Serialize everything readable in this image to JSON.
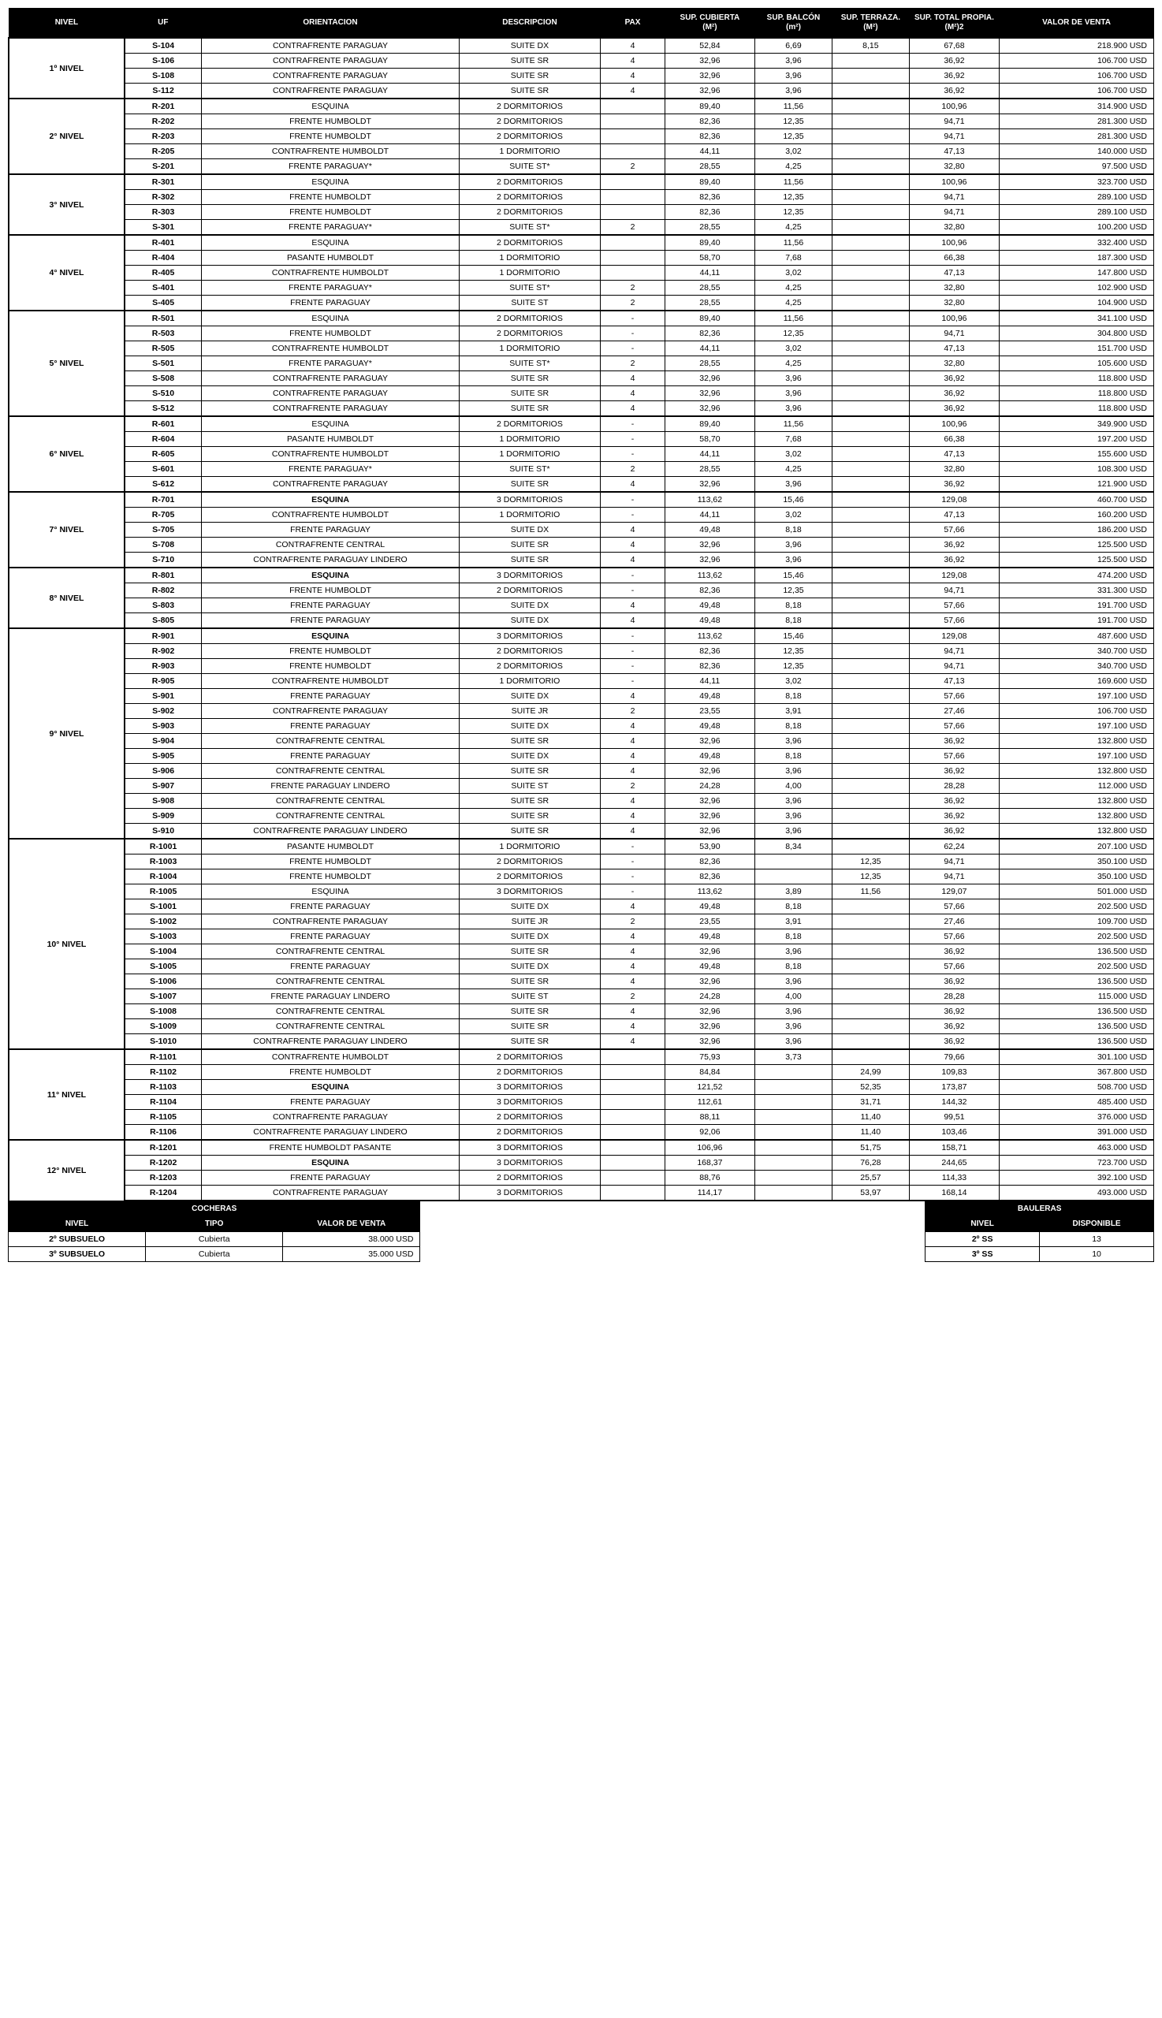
{
  "headers": [
    "NIVEL",
    "UF",
    "ORIENTACION",
    "DESCRIPCION",
    "PAX",
    "SUP. CUBIERTA (M²)",
    "SUP. BALCÓN (m²)",
    "SUP. TERRAZA. (M²)",
    "SUP. TOTAL PROPIA. (M²)2",
    "VALOR DE VENTA"
  ],
  "groups": [
    {
      "nivel": "1º NIVEL",
      "rows": [
        [
          "S-104",
          "CONTRAFRENTE PARAGUAY",
          "SUITE DX",
          "4",
          "52,84",
          "6,69",
          "8,15",
          "67,68",
          "218.900 USD"
        ],
        [
          "S-106",
          "CONTRAFRENTE PARAGUAY",
          "SUITE SR",
          "4",
          "32,96",
          "3,96",
          "",
          "36,92",
          "106.700 USD"
        ],
        [
          "S-108",
          "CONTRAFRENTE PARAGUAY",
          "SUITE SR",
          "4",
          "32,96",
          "3,96",
          "",
          "36,92",
          "106.700 USD"
        ],
        [
          "S-112",
          "CONTRAFRENTE PARAGUAY",
          "SUITE SR",
          "4",
          "32,96",
          "3,96",
          "",
          "36,92",
          "106.700 USD"
        ]
      ]
    },
    {
      "nivel": "2° NIVEL",
      "rows": [
        [
          "R-201",
          "ESQUINA",
          "2 DORMITORIOS",
          "",
          "89,40",
          "11,56",
          "",
          "100,96",
          "314.900 USD"
        ],
        [
          "R-202",
          "FRENTE HUMBOLDT",
          "2 DORMITORIOS",
          "",
          "82,36",
          "12,35",
          "",
          "94,71",
          "281.300 USD"
        ],
        [
          "R-203",
          "FRENTE HUMBOLDT",
          "2 DORMITORIOS",
          "",
          "82,36",
          "12,35",
          "",
          "94,71",
          "281.300 USD"
        ],
        [
          "R-205",
          "CONTRAFRENTE HUMBOLDT",
          "1 DORMITORIO",
          "",
          "44,11",
          "3,02",
          "",
          "47,13",
          "140.000 USD"
        ],
        [
          "S-201",
          "FRENTE PARAGUAY*",
          "SUITE ST*",
          "2",
          "28,55",
          "4,25",
          "",
          "32,80",
          "97.500 USD"
        ]
      ]
    },
    {
      "nivel": "3° NIVEL",
      "rows": [
        [
          "R-301",
          "ESQUINA",
          "2 DORMITORIOS",
          "",
          "89,40",
          "11,56",
          "",
          "100,96",
          "323.700 USD"
        ],
        [
          "R-302",
          "FRENTE HUMBOLDT",
          "2 DORMITORIOS",
          "",
          "82,36",
          "12,35",
          "",
          "94,71",
          "289.100 USD"
        ],
        [
          "R-303",
          "FRENTE HUMBOLDT",
          "2 DORMITORIOS",
          "",
          "82,36",
          "12,35",
          "",
          "94,71",
          "289.100 USD"
        ],
        [
          "S-301",
          "FRENTE PARAGUAY*",
          "SUITE ST*",
          "2",
          "28,55",
          "4,25",
          "",
          "32,80",
          "100.200 USD"
        ]
      ]
    },
    {
      "nivel": "4° NIVEL",
      "rows": [
        [
          "R-401",
          "ESQUINA",
          "2 DORMITORIOS",
          "",
          "89,40",
          "11,56",
          "",
          "100,96",
          "332.400 USD"
        ],
        [
          "R-404",
          "PASANTE HUMBOLDT",
          "1 DORMITORIO",
          "",
          "58,70",
          "7,68",
          "",
          "66,38",
          "187.300 USD"
        ],
        [
          "R-405",
          "CONTRAFRENTE HUMBOLDT",
          "1 DORMITORIO",
          "",
          "44,11",
          "3,02",
          "",
          "47,13",
          "147.800 USD"
        ],
        [
          "S-401",
          "FRENTE PARAGUAY*",
          "SUITE ST*",
          "2",
          "28,55",
          "4,25",
          "",
          "32,80",
          "102.900 USD"
        ],
        [
          "S-405",
          "FRENTE PARAGUAY",
          "SUITE ST",
          "2",
          "28,55",
          "4,25",
          "",
          "32,80",
          "104.900 USD"
        ]
      ]
    },
    {
      "nivel": "5° NIVEL",
      "rows": [
        [
          "R-501",
          "ESQUINA",
          "2 DORMITORIOS",
          "-",
          "89,40",
          "11,56",
          "",
          "100,96",
          "341.100 USD"
        ],
        [
          "R-503",
          "FRENTE HUMBOLDT",
          "2 DORMITORIOS",
          "-",
          "82,36",
          "12,35",
          "",
          "94,71",
          "304.800 USD"
        ],
        [
          "R-505",
          "CONTRAFRENTE HUMBOLDT",
          "1 DORMITORIO",
          "-",
          "44,11",
          "3,02",
          "",
          "47,13",
          "151.700 USD"
        ],
        [
          "S-501",
          "FRENTE PARAGUAY*",
          "SUITE ST*",
          "2",
          "28,55",
          "4,25",
          "",
          "32,80",
          "105.600 USD"
        ],
        [
          "S-508",
          "CONTRAFRENTE PARAGUAY",
          "SUITE SR",
          "4",
          "32,96",
          "3,96",
          "",
          "36,92",
          "118.800 USD"
        ],
        [
          "S-510",
          "CONTRAFRENTE PARAGUAY",
          "SUITE SR",
          "4",
          "32,96",
          "3,96",
          "",
          "36,92",
          "118.800 USD"
        ],
        [
          "S-512",
          "CONTRAFRENTE PARAGUAY",
          "SUITE SR",
          "4",
          "32,96",
          "3,96",
          "",
          "36,92",
          "118.800 USD"
        ]
      ]
    },
    {
      "nivel": "6° NIVEL",
      "rows": [
        [
          "R-601",
          "ESQUINA",
          "2 DORMITORIOS",
          "-",
          "89,40",
          "11,56",
          "",
          "100,96",
          "349.900 USD"
        ],
        [
          "R-604",
          "PASANTE HUMBOLDT",
          "1 DORMITORIO",
          "-",
          "58,70",
          "7,68",
          "",
          "66,38",
          "197.200 USD"
        ],
        [
          "R-605",
          "CONTRAFRENTE HUMBOLDT",
          "1 DORMITORIO",
          "-",
          "44,11",
          "3,02",
          "",
          "47,13",
          "155.600 USD"
        ],
        [
          "S-601",
          "FRENTE PARAGUAY*",
          "SUITE ST*",
          "2",
          "28,55",
          "4,25",
          "",
          "32,80",
          "108.300 USD"
        ],
        [
          "S-612",
          "CONTRAFRENTE PARAGUAY",
          "SUITE SR",
          "4",
          "32,96",
          "3,96",
          "",
          "36,92",
          "121.900 USD"
        ]
      ]
    },
    {
      "nivel": "7° NIVEL",
      "rows": [
        [
          "R-701",
          "ESQUINA",
          "3 DORMITORIOS",
          "-",
          "113,62",
          "15,46",
          "",
          "129,08",
          "460.700 USD",
          true
        ],
        [
          "R-705",
          "CONTRAFRENTE HUMBOLDT",
          "1 DORMITORIO",
          "-",
          "44,11",
          "3,02",
          "",
          "47,13",
          "160.200 USD"
        ],
        [
          "S-705",
          "FRENTE PARAGUAY",
          "SUITE DX",
          "4",
          "49,48",
          "8,18",
          "",
          "57,66",
          "186.200 USD"
        ],
        [
          "S-708",
          "CONTRAFRENTE CENTRAL",
          "SUITE SR",
          "4",
          "32,96",
          "3,96",
          "",
          "36,92",
          "125.500 USD"
        ],
        [
          "S-710",
          "CONTRAFRENTE PARAGUAY LINDERO",
          "SUITE SR",
          "4",
          "32,96",
          "3,96",
          "",
          "36,92",
          "125.500 USD"
        ]
      ]
    },
    {
      "nivel": "8° NIVEL",
      "rows": [
        [
          "R-801",
          "ESQUINA",
          "3 DORMITORIOS",
          "-",
          "113,62",
          "15,46",
          "",
          "129,08",
          "474.200 USD",
          true
        ],
        [
          "R-802",
          "FRENTE HUMBOLDT",
          "2 DORMITORIOS",
          "-",
          "82,36",
          "12,35",
          "",
          "94,71",
          "331.300 USD"
        ],
        [
          "S-803",
          "FRENTE PARAGUAY",
          "SUITE DX",
          "4",
          "49,48",
          "8,18",
          "",
          "57,66",
          "191.700 USD"
        ],
        [
          "S-805",
          "FRENTE PARAGUAY",
          "SUITE DX",
          "4",
          "49,48",
          "8,18",
          "",
          "57,66",
          "191.700 USD"
        ]
      ]
    },
    {
      "nivel": "9° NIVEL",
      "rows": [
        [
          "R-901",
          "ESQUINA",
          "3 DORMITORIOS",
          "-",
          "113,62",
          "15,46",
          "",
          "129,08",
          "487.600 USD",
          true
        ],
        [
          "R-902",
          "FRENTE HUMBOLDT",
          "2 DORMITORIOS",
          "-",
          "82,36",
          "12,35",
          "",
          "94,71",
          "340.700 USD"
        ],
        [
          "R-903",
          "FRENTE HUMBOLDT",
          "2 DORMITORIOS",
          "-",
          "82,36",
          "12,35",
          "",
          "94,71",
          "340.700 USD"
        ],
        [
          "R-905",
          "CONTRAFRENTE HUMBOLDT",
          "1 DORMITORIO",
          "-",
          "44,11",
          "3,02",
          "",
          "47,13",
          "169.600 USD"
        ],
        [
          "S-901",
          "FRENTE PARAGUAY",
          "SUITE DX",
          "4",
          "49,48",
          "8,18",
          "",
          "57,66",
          "197.100 USD"
        ],
        [
          "S-902",
          "CONTRAFRENTE PARAGUAY",
          "SUITE JR",
          "2",
          "23,55",
          "3,91",
          "",
          "27,46",
          "106.700 USD"
        ],
        [
          "S-903",
          "FRENTE PARAGUAY",
          "SUITE DX",
          "4",
          "49,48",
          "8,18",
          "",
          "57,66",
          "197.100 USD"
        ],
        [
          "S-904",
          "CONTRAFRENTE CENTRAL",
          "SUITE SR",
          "4",
          "32,96",
          "3,96",
          "",
          "36,92",
          "132.800 USD"
        ],
        [
          "S-905",
          "FRENTE PARAGUAY",
          "SUITE DX",
          "4",
          "49,48",
          "8,18",
          "",
          "57,66",
          "197.100 USD"
        ],
        [
          "S-906",
          "CONTRAFRENTE CENTRAL",
          "SUITE SR",
          "4",
          "32,96",
          "3,96",
          "",
          "36,92",
          "132.800 USD"
        ],
        [
          "S-907",
          "FRENTE PARAGUAY LINDERO",
          "SUITE ST",
          "2",
          "24,28",
          "4,00",
          "",
          "28,28",
          "112.000 USD"
        ],
        [
          "S-908",
          "CONTRAFRENTE CENTRAL",
          "SUITE SR",
          "4",
          "32,96",
          "3,96",
          "",
          "36,92",
          "132.800 USD"
        ],
        [
          "S-909",
          "CONTRAFRENTE CENTRAL",
          "SUITE SR",
          "4",
          "32,96",
          "3,96",
          "",
          "36,92",
          "132.800 USD"
        ],
        [
          "S-910",
          "CONTRAFRENTE PARAGUAY LINDERO",
          "SUITE SR",
          "4",
          "32,96",
          "3,96",
          "",
          "36,92",
          "132.800 USD"
        ]
      ]
    },
    {
      "nivel": "10° NIVEL",
      "rows": [
        [
          "R-1001",
          "PASANTE HUMBOLDT",
          "1 DORMITORIO",
          "-",
          "53,90",
          "8,34",
          "",
          "62,24",
          "207.100 USD"
        ],
        [
          "R-1003",
          "FRENTE HUMBOLDT",
          "2 DORMITORIOS",
          "-",
          "82,36",
          "",
          "12,35",
          "94,71",
          "350.100 USD"
        ],
        [
          "R-1004",
          "FRENTE HUMBOLDT",
          "2 DORMITORIOS",
          "-",
          "82,36",
          "",
          "12,35",
          "94,71",
          "350.100 USD"
        ],
        [
          "R-1005",
          "ESQUINA",
          "3 DORMITORIOS",
          "-",
          "113,62",
          "3,89",
          "11,56",
          "129,07",
          "501.000 USD"
        ],
        [
          "S-1001",
          "FRENTE PARAGUAY",
          "SUITE DX",
          "4",
          "49,48",
          "8,18",
          "",
          "57,66",
          "202.500 USD"
        ],
        [
          "S-1002",
          "CONTRAFRENTE PARAGUAY",
          "SUITE JR",
          "2",
          "23,55",
          "3,91",
          "",
          "27,46",
          "109.700 USD"
        ],
        [
          "S-1003",
          "FRENTE PARAGUAY",
          "SUITE DX",
          "4",
          "49,48",
          "8,18",
          "",
          "57,66",
          "202.500 USD"
        ],
        [
          "S-1004",
          "CONTRAFRENTE CENTRAL",
          "SUITE SR",
          "4",
          "32,96",
          "3,96",
          "",
          "36,92",
          "136.500 USD"
        ],
        [
          "S-1005",
          "FRENTE PARAGUAY",
          "SUITE DX",
          "4",
          "49,48",
          "8,18",
          "",
          "57,66",
          "202.500 USD"
        ],
        [
          "S-1006",
          "CONTRAFRENTE CENTRAL",
          "SUITE SR",
          "4",
          "32,96",
          "3,96",
          "",
          "36,92",
          "136.500 USD"
        ],
        [
          "S-1007",
          "FRENTE PARAGUAY LINDERO",
          "SUITE ST",
          "2",
          "24,28",
          "4,00",
          "",
          "28,28",
          "115.000 USD"
        ],
        [
          "S-1008",
          "CONTRAFRENTE CENTRAL",
          "SUITE SR",
          "4",
          "32,96",
          "3,96",
          "",
          "36,92",
          "136.500 USD"
        ],
        [
          "S-1009",
          "CONTRAFRENTE CENTRAL",
          "SUITE SR",
          "4",
          "32,96",
          "3,96",
          "",
          "36,92",
          "136.500 USD"
        ],
        [
          "S-1010",
          "CONTRAFRENTE PARAGUAY LINDERO",
          "SUITE SR",
          "4",
          "32,96",
          "3,96",
          "",
          "36,92",
          "136.500 USD"
        ]
      ]
    },
    {
      "nivel": "11° NIVEL",
      "rows": [
        [
          "R-1101",
          "CONTRAFRENTE HUMBOLDT",
          "2 DORMITORIOS",
          "",
          "75,93",
          "3,73",
          "",
          "79,66",
          "301.100 USD"
        ],
        [
          "R-1102",
          "FRENTE HUMBOLDT",
          "2 DORMITORIOS",
          "",
          "84,84",
          "",
          "24,99",
          "109,83",
          "367.800 USD"
        ],
        [
          "R-1103",
          "ESQUINA",
          "3 DORMITORIOS",
          "",
          "121,52",
          "",
          "52,35",
          "173,87",
          "508.700 USD",
          true
        ],
        [
          "R-1104",
          "FRENTE PARAGUAY",
          "3 DORMITORIOS",
          "",
          "112,61",
          "",
          "31,71",
          "144,32",
          "485.400 USD"
        ],
        [
          "R-1105",
          "CONTRAFRENTE PARAGUAY",
          "2 DORMITORIOS",
          "",
          "88,11",
          "",
          "11,40",
          "99,51",
          "376.000 USD"
        ],
        [
          "R-1106",
          "CONTRAFRENTE PARAGUAY LINDERO",
          "2 DORMITORIOS",
          "",
          "92,06",
          "",
          "11,40",
          "103,46",
          "391.000 USD"
        ]
      ]
    },
    {
      "nivel": "12° NIVEL",
      "rows": [
        [
          "R-1201",
          "FRENTE HUMBOLDT PASANTE",
          "3 DORMITORIOS",
          "",
          "106,96",
          "",
          "51,75",
          "158,71",
          "463.000 USD"
        ],
        [
          "R-1202",
          "ESQUINA",
          "3 DORMITORIOS",
          "",
          "168,37",
          "",
          "76,28",
          "244,65",
          "723.700 USD",
          true
        ],
        [
          "R-1203",
          "FRENTE PARAGUAY",
          "2 DORMITORIOS",
          "",
          "88,76",
          "",
          "25,57",
          "114,33",
          "392.100 USD"
        ],
        [
          "R-1204",
          "CONTRAFRENTE PARAGUAY",
          "3 DORMITORIOS",
          "",
          "114,17",
          "",
          "53,97",
          "168,14",
          "493.000 USD"
        ]
      ]
    }
  ],
  "cocheras": {
    "title": "COCHERAS",
    "headers": [
      "NIVEL",
      "TIPO",
      "VALOR DE VENTA"
    ],
    "rows": [
      [
        "2º SUBSUELO",
        "Cubierta",
        "38.000 USD"
      ],
      [
        "3º SUBSUELO",
        "Cubierta",
        "35.000 USD"
      ]
    ]
  },
  "bauleras": {
    "title": "BAULERAS",
    "headers": [
      "NIVEL",
      "DISPONIBLE"
    ],
    "rows": [
      [
        "2º SS",
        "13"
      ],
      [
        "3º SS",
        "10"
      ]
    ]
  }
}
